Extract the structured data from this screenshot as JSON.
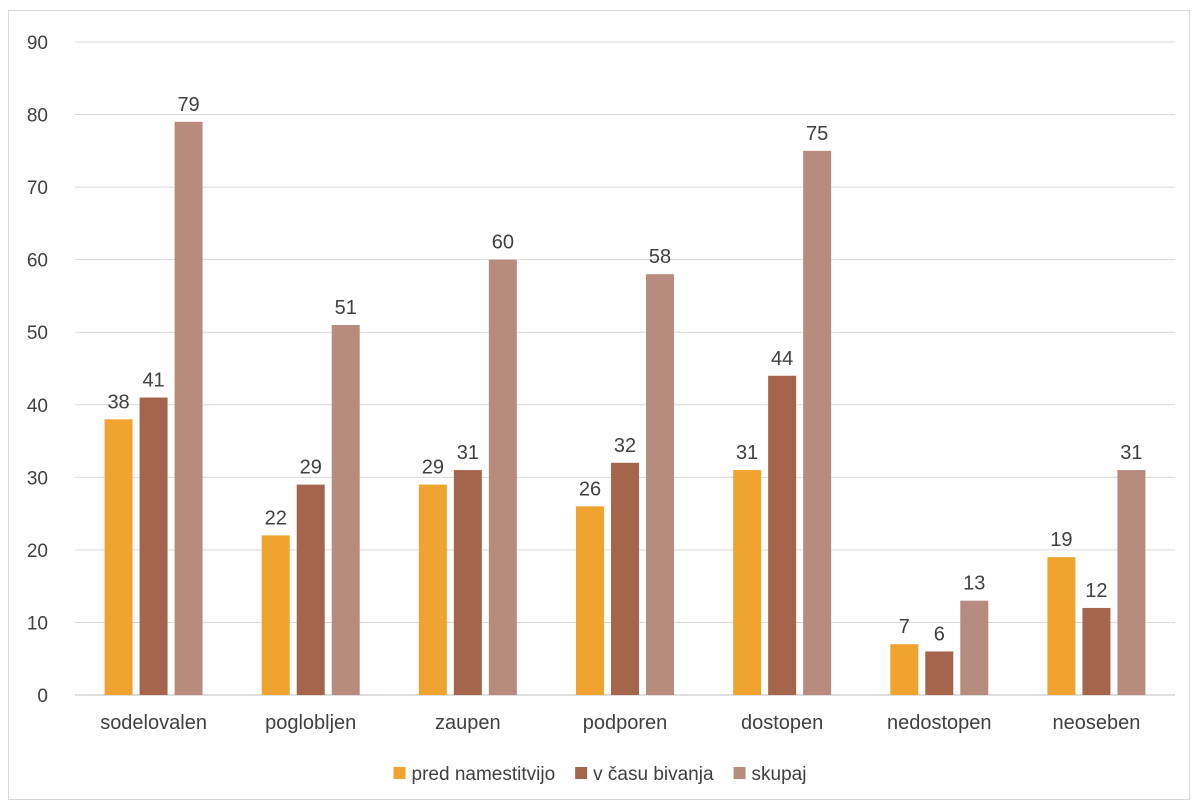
{
  "chart_data": {
    "type": "bar",
    "categories": [
      "sodelovalen",
      "poglobljen",
      "zaupen",
      "podporen",
      "dostopen",
      "nedostopen",
      "neoseben"
    ],
    "series": [
      {
        "name": "pred namestitvijo",
        "values": [
          38,
          22,
          29,
          26,
          31,
          7,
          19
        ],
        "color": "#F0A32E"
      },
      {
        "name": "v času bivanja",
        "values": [
          41,
          29,
          31,
          32,
          44,
          6,
          12
        ],
        "color": "#A5644C"
      },
      {
        "name": "skupaj",
        "values": [
          79,
          51,
          60,
          58,
          75,
          13,
          31
        ],
        "color": "#B88B7F"
      }
    ],
    "ylim": [
      0,
      90
    ],
    "yticks": [
      0,
      10,
      20,
      30,
      40,
      50,
      60,
      70,
      80,
      90
    ],
    "grid": true,
    "legend_position": "bottom",
    "data_labels": true,
    "gridline_color": "#d9d9d9",
    "axis_color": "#bfbfbf",
    "text_color": "#404040"
  }
}
